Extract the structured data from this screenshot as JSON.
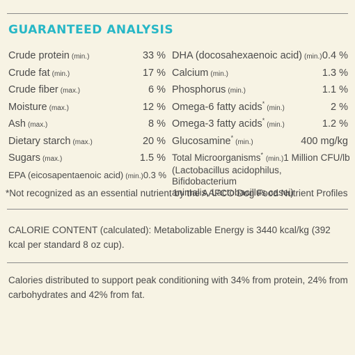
{
  "title": "GUARANTEED ANALYSIS",
  "left_rows": [
    {
      "name": "Crude protein",
      "qual": "(min.)",
      "value": "33 %"
    },
    {
      "name": "Crude fat",
      "qual": "(min.)",
      "value": "17 %"
    },
    {
      "name": "Crude fiber",
      "qual": "(max.)",
      "value": "6 %"
    },
    {
      "name": "Moisture",
      "qual": "(max.)",
      "value": "12 %"
    },
    {
      "name": "Ash",
      "qual": "(max.)",
      "value": "8 %"
    },
    {
      "name": "Dietary starch",
      "qual": "(max.)",
      "value": "20 %"
    },
    {
      "name": "Sugars",
      "qual": "(max.)",
      "value": "1.5 %"
    },
    {
      "name": "EPA (eicosapentaenoic acid)",
      "qual": "(min.)",
      "value": "0.3 %"
    }
  ],
  "right_rows": [
    {
      "name": "DHA (docosahexaenoic acid)",
      "qual": "(min.)",
      "value": "0.4 %"
    },
    {
      "name": "Calcium",
      "qual": "(min.)",
      "value": "1.3 %"
    },
    {
      "name": "Phosphorus",
      "qual": "(min.)",
      "value": "1.1 %"
    },
    {
      "name": "Omega-6 fatty acids",
      "star": "*",
      "qual": "(min.)",
      "value": "2 %"
    },
    {
      "name": "Omega-3 fatty acids",
      "star": "*",
      "qual": "(min.)",
      "value": "1.2 %"
    },
    {
      "name": "Glucosamine",
      "star": "*",
      "qual": "(min.)",
      "value": "400 mg/kg"
    }
  ],
  "microorganisms": {
    "name": "Total Microorganisms",
    "star": "*",
    "qual": "(min.)",
    "value": "1 Million CFU/lb",
    "line2": "(Lactobacillus acidophilus, Bifidobacterium",
    "line3": "animalis, Lactobacillus casei)"
  },
  "footnote": "*Not recognized as an essential nutrient by the AAFCO Dog Food Nutrient Profiles",
  "calorie": {
    "label": "CALORIE CONTENT (calculated):",
    "text": " Metabolizable Energy is 3440 kcal/kg (392 kcal per standard 8 oz cup)."
  },
  "distribution": "Calories distributed to support peak conditioning with 34% from protein, 24% from carbohydrates and 42% from fat."
}
